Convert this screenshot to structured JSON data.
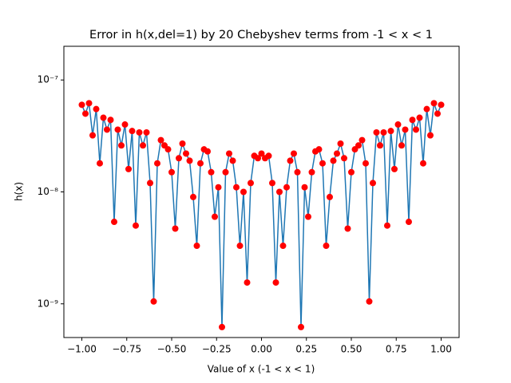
{
  "chart_data": {
    "type": "line",
    "title": "Error in h(x,del=1) by 20 Chebyshev terms from -1 < x < 1",
    "x_label": "Value of x (-1 < x < 1)",
    "y_label": "h(x)",
    "log_y": true,
    "color": "#1f77b4",
    "marker_color": "#ff0000",
    "xlim": [
      -1.1,
      1.1
    ],
    "ylim": [
      5e-10,
      2e-07
    ],
    "xticks": [
      {
        "value": -1,
        "label": "−1.00"
      },
      {
        "value": -0.75,
        "label": "−0.75"
      },
      {
        "value": -0.5,
        "label": "−0.50"
      },
      {
        "value": -0.25,
        "label": "−0.25"
      },
      {
        "value": 0,
        "label": "0.00"
      },
      {
        "value": 0.25,
        "label": "0.25"
      },
      {
        "value": 0.5,
        "label": "0.50"
      },
      {
        "value": 0.75,
        "label": "0.75"
      },
      {
        "value": 1,
        "label": "1.00"
      }
    ],
    "yticks": [
      {
        "value": 1e-09,
        "label": "10⁻⁹"
      },
      {
        "value": 1e-08,
        "label": "10⁻⁸"
      },
      {
        "value": 1e-07,
        "label": "10⁻⁷"
      }
    ],
    "x": [
      -1.0,
      -0.98,
      -0.96,
      -0.94,
      -0.92,
      -0.9,
      -0.88,
      -0.86,
      -0.84,
      -0.82,
      -0.8,
      -0.78,
      -0.76,
      -0.74,
      -0.72,
      -0.7,
      -0.68,
      -0.66,
      -0.64,
      -0.62,
      -0.6,
      -0.58,
      -0.56,
      -0.54,
      -0.52,
      -0.5,
      -0.48,
      -0.46,
      -0.44,
      -0.42,
      -0.4,
      -0.38,
      -0.36,
      -0.34,
      -0.32,
      -0.3,
      -0.28,
      -0.26,
      -0.24,
      -0.22,
      -0.2,
      -0.18,
      -0.16,
      -0.14,
      -0.12,
      -0.1,
      -0.08,
      -0.06,
      -0.04,
      -0.02,
      0.0,
      0.02,
      0.04,
      0.06,
      0.08,
      0.1,
      0.12,
      0.14,
      0.16,
      0.18,
      0.2,
      0.22,
      0.24,
      0.26,
      0.28,
      0.3,
      0.32,
      0.34,
      0.36,
      0.38,
      0.4,
      0.42,
      0.44,
      0.46,
      0.48,
      0.5,
      0.52,
      0.54,
      0.56,
      0.58,
      0.6,
      0.62,
      0.64,
      0.66,
      0.68,
      0.7,
      0.72,
      0.74,
      0.76,
      0.78,
      0.8,
      0.82,
      0.84,
      0.86,
      0.88,
      0.9,
      0.92,
      0.94,
      0.96,
      0.98,
      1.0
    ],
    "values": [
      6e-08,
      5e-08,
      6.2e-08,
      3.2e-08,
      5.5e-08,
      1.8e-08,
      4.6e-08,
      3.6e-08,
      4.4e-08,
      5.4e-09,
      3.6e-08,
      2.6e-08,
      4e-08,
      1.6e-08,
      3.5e-08,
      5e-09,
      3.4e-08,
      2.6e-08,
      3.4e-08,
      1.2e-08,
      1.05e-09,
      1.8e-08,
      2.9e-08,
      2.6e-08,
      2.4e-08,
      1.5e-08,
      4.7e-09,
      2e-08,
      2.7e-08,
      2.2e-08,
      1.9e-08,
      9e-09,
      3.3e-09,
      1.8e-08,
      2.4e-08,
      2.3e-08,
      1.5e-08,
      6e-09,
      1.1e-08,
      6.2e-10,
      1.5e-08,
      2.2e-08,
      1.9e-08,
      1.1e-08,
      3.3e-09,
      1e-08,
      1.55e-09,
      1.2e-08,
      2.1e-08,
      2e-08,
      2.2e-08,
      2e-08,
      2.1e-08,
      1.2e-08,
      1.55e-09,
      1e-08,
      3.3e-09,
      1.1e-08,
      1.9e-08,
      2.2e-08,
      1.5e-08,
      6.2e-10,
      1.1e-08,
      6e-09,
      1.5e-08,
      2.3e-08,
      2.4e-08,
      1.8e-08,
      3.3e-09,
      9e-09,
      1.9e-08,
      2.2e-08,
      2.7e-08,
      2e-08,
      4.7e-09,
      1.5e-08,
      2.4e-08,
      2.6e-08,
      2.9e-08,
      1.8e-08,
      1.05e-09,
      1.2e-08,
      3.4e-08,
      2.6e-08,
      3.4e-08,
      5e-09,
      3.5e-08,
      1.6e-08,
      4e-08,
      2.6e-08,
      3.6e-08,
      5.4e-09,
      4.4e-08,
      3.6e-08,
      4.6e-08,
      1.8e-08,
      5.5e-08,
      3.2e-08,
      6.2e-08,
      5e-08,
      6e-08
    ]
  }
}
